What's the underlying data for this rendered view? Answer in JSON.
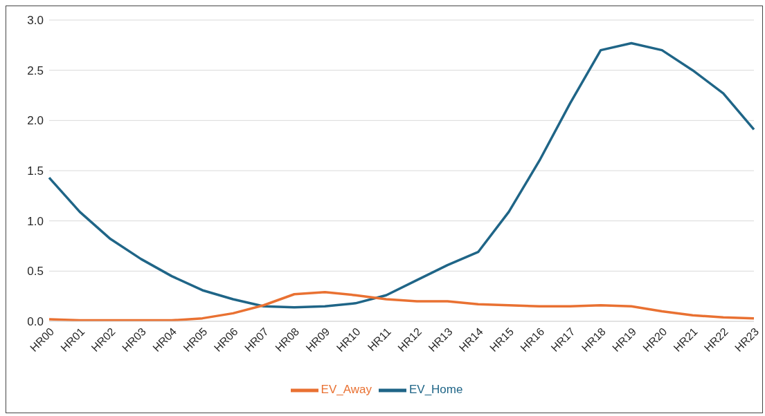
{
  "chart_data": {
    "type": "line",
    "categories": [
      "HR00",
      "HR01",
      "HR02",
      "HR03",
      "HR04",
      "HR05",
      "HR06",
      "HR07",
      "HR08",
      "HR09",
      "HR10",
      "HR11",
      "HR12",
      "HR13",
      "HR14",
      "HR15",
      "HR16",
      "HR17",
      "HR18",
      "HR19",
      "HR20",
      "HR21",
      "HR22",
      "HR23"
    ],
    "series": [
      {
        "name": "EV_Home",
        "color": "#1f6587",
        "values": [
          1.43,
          1.09,
          0.82,
          0.62,
          0.45,
          0.31,
          0.22,
          0.15,
          0.14,
          0.15,
          0.18,
          0.26,
          0.41,
          0.56,
          0.69,
          1.09,
          1.6,
          2.17,
          2.7,
          2.77,
          2.7,
          2.5,
          2.27,
          1.91
        ]
      },
      {
        "name": "EV_Away",
        "color": "#e97132",
        "values": [
          0.02,
          0.01,
          0.01,
          0.01,
          0.01,
          0.03,
          0.08,
          0.16,
          0.27,
          0.29,
          0.26,
          0.22,
          0.2,
          0.2,
          0.17,
          0.16,
          0.15,
          0.15,
          0.16,
          0.15,
          0.1,
          0.06,
          0.04,
          0.03
        ]
      }
    ],
    "ylim": [
      0,
      3
    ],
    "yticks": [
      {
        "value": 0,
        "label": "0.0"
      },
      {
        "value": 0.5,
        "label": "0.5"
      },
      {
        "value": 1,
        "label": "1.0"
      },
      {
        "value": 1.5,
        "label": "1.5"
      },
      {
        "value": 2,
        "label": "2.0"
      },
      {
        "value": 2.5,
        "label": "2.5"
      },
      {
        "value": 3,
        "label": "3.0"
      }
    ],
    "grid": "y",
    "legend": "bottom",
    "marker": "none",
    "line_style": "solid"
  }
}
